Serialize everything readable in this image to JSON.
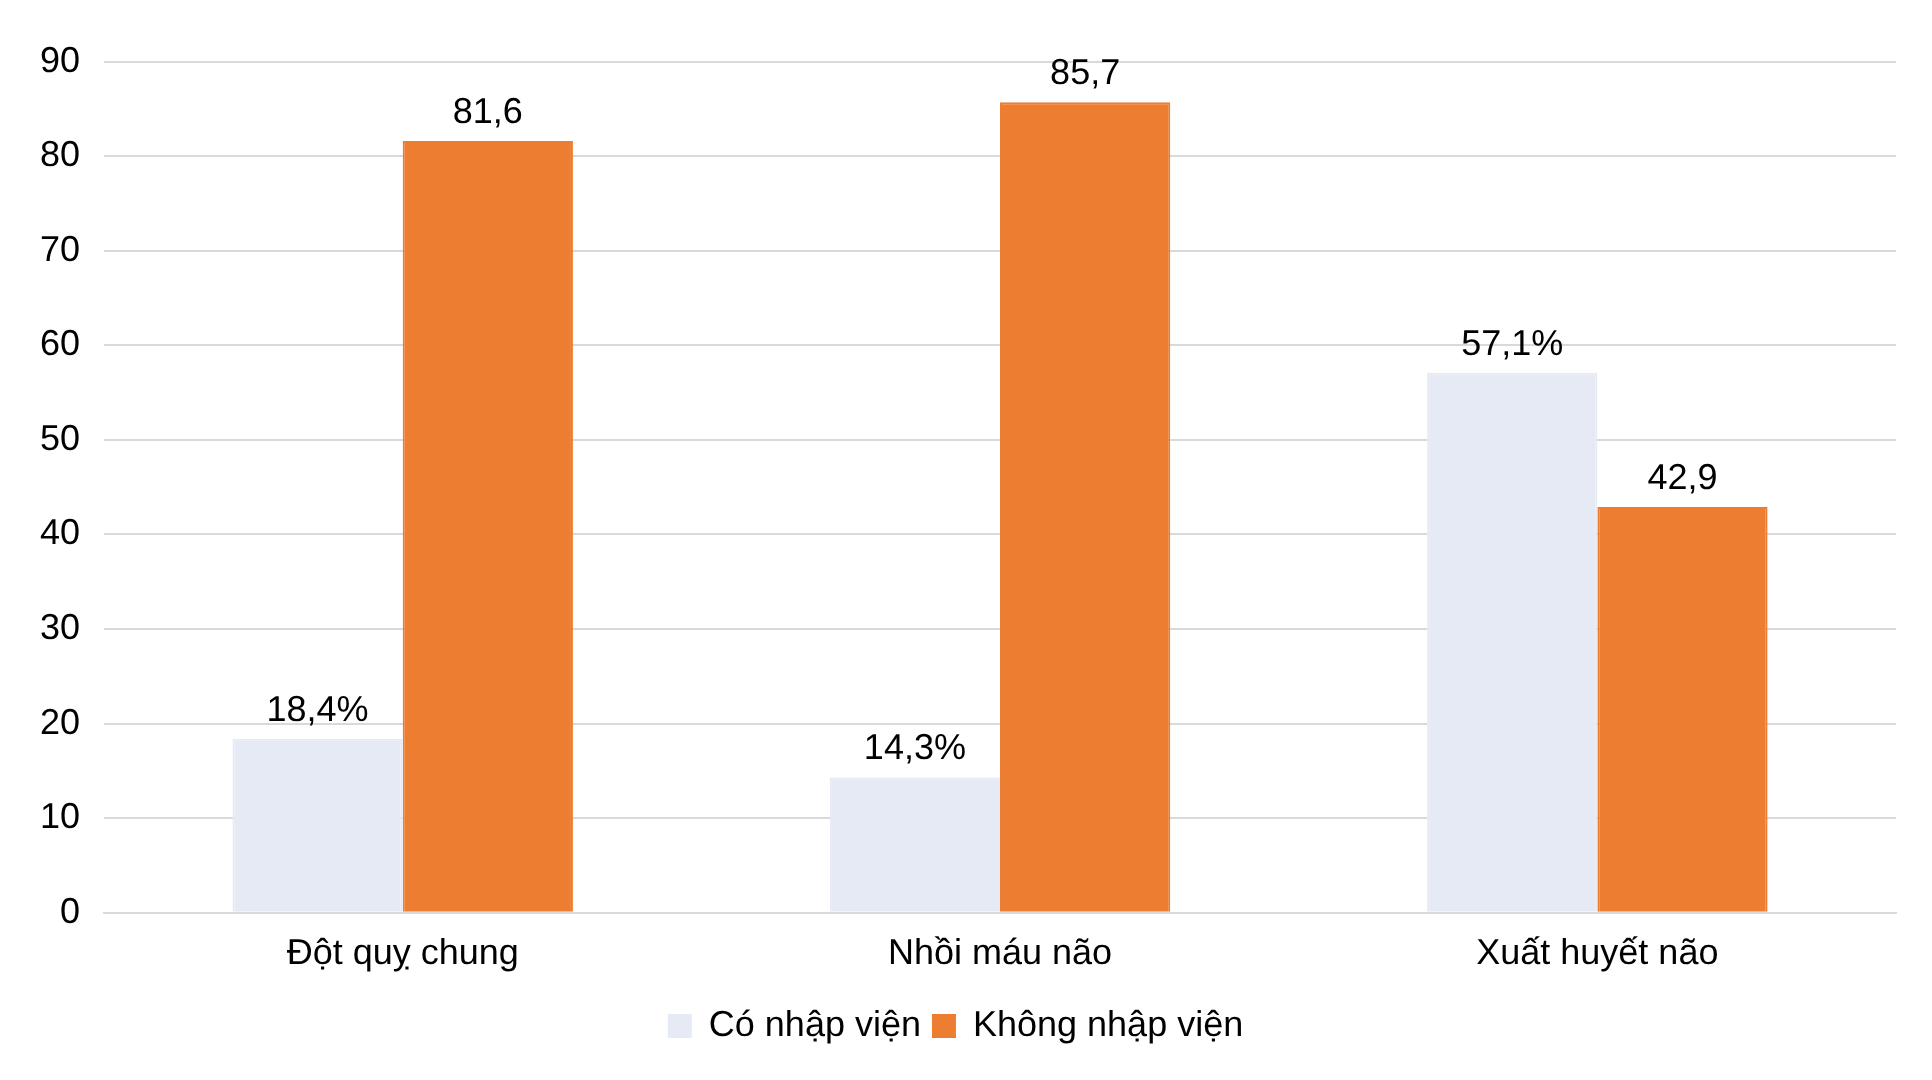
{
  "chart_data": {
    "type": "bar",
    "categories": [
      "Đột quỵ chung",
      "Nhồi máu não",
      "Xuất huyết não"
    ],
    "series": [
      {
        "name": "Có nhập viện",
        "color": "#e6eaf5",
        "values": [
          18.4,
          14.3,
          57.1
        ],
        "value_labels": [
          "18,4%",
          "14,3%",
          "57,1%"
        ]
      },
      {
        "name": "Không nhập viện",
        "color": "#ed7d31",
        "values": [
          81.6,
          85.7,
          42.9
        ],
        "value_labels": [
          "81,6",
          "85,7",
          "42,9"
        ]
      }
    ],
    "ylim": [
      0,
      90
    ],
    "yticks": [
      0,
      10,
      20,
      30,
      40,
      50,
      60,
      70,
      80,
      90
    ],
    "grid": "y",
    "legend": "bottom"
  }
}
